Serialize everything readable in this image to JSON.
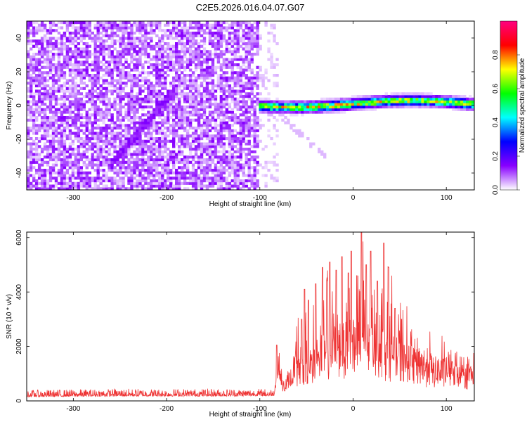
{
  "title": "C2E5.2026.016.04.07.G07",
  "chart_data": [
    {
      "type": "heatmap",
      "xlabel": "Height of straight line (km)",
      "ylabel": "Frequency (Hz)",
      "xlim": [
        -350,
        130
      ],
      "ylim": [
        -50,
        50
      ],
      "xticks": [
        -300,
        -200,
        -100,
        0,
        100
      ],
      "yticks": [
        -40,
        -20,
        0,
        20,
        40
      ],
      "colorbar": {
        "label": "Normalized spectral amplitude",
        "range": [
          0,
          1
        ],
        "ticks": [
          "0.0",
          "0.2",
          "0.4",
          "0.6",
          "0.8"
        ],
        "colors": [
          "#ffffff",
          "#8800ff",
          "#0000ff",
          "#00ffff",
          "#00ff00",
          "#ffff00",
          "#ff0000",
          "#ff0080"
        ]
      },
      "features": [
        {
          "name": "noise",
          "x": [
            -350,
            -100
          ],
          "y": [
            -50,
            50
          ],
          "level": 0.1
        },
        {
          "name": "sparse-noise",
          "x": [
            -100,
            -80
          ],
          "y": [
            -50,
            50
          ],
          "level": 0.03
        },
        {
          "name": "diagonal-streak",
          "x": [
            -260,
            -190
          ],
          "y": [
            -35,
            10
          ],
          "level": 0.12
        },
        {
          "name": "carrier",
          "x": [
            -100,
            130
          ],
          "y": [
            -3,
            5
          ],
          "level": 0.6
        },
        {
          "name": "carrier-tail",
          "x": [
            -80,
            -30
          ],
          "y": [
            -30,
            -5
          ],
          "level": 0.04
        }
      ]
    },
    {
      "type": "line",
      "xlabel": "Height of straight line (km)",
      "ylabel": "SNR (10 * v/v)",
      "xlim": [
        -350,
        130
      ],
      "ylim": [
        0,
        6200
      ],
      "xticks": [
        -300,
        -200,
        -100,
        0,
        100
      ],
      "yticks": [
        0,
        2000,
        4000,
        6000
      ],
      "series": [
        {
          "color": "#ee3333",
          "envelope": {
            "x": [
              -350,
              -250,
              -150,
              -100,
              -85,
              -80,
              -75,
              -65,
              -60,
              -50,
              -40,
              -30,
              -20,
              -10,
              0,
              10,
              20,
              30,
              40,
              50,
              70,
              90,
              110,
              130
            ],
            "base": [
              150,
              170,
              170,
              180,
              180,
              1000,
              300,
              600,
              1100,
              1400,
              1800,
              2000,
              2200,
              2300,
              2400,
              2400,
              2300,
              2100,
              2000,
              1800,
              1500,
              1300,
              1200,
              1150
            ],
            "peak": [
              400,
              450,
              450,
              450,
              450,
              2000,
              800,
              1500,
              3000,
              4100,
              4300,
              4900,
              5100,
              5300,
              5500,
              6200,
              5500,
              5800,
              4900,
              3500,
              2600,
              2300,
              2000,
              1900
            ]
          },
          "spikes": [
            {
              "x": -82,
              "y": 2050
            },
            {
              "x": -55,
              "y": 3000
            },
            {
              "x": -52,
              "y": 4100
            },
            {
              "x": -48,
              "y": 3700
            },
            {
              "x": -40,
              "y": 4300
            },
            {
              "x": -33,
              "y": 4900
            },
            {
              "x": -28,
              "y": 4400
            },
            {
              "x": -25,
              "y": 5100
            },
            {
              "x": -18,
              "y": 4800
            },
            {
              "x": -12,
              "y": 5300
            },
            {
              "x": -5,
              "y": 4700
            },
            {
              "x": -2,
              "y": 5500
            },
            {
              "x": 4,
              "y": 4600
            },
            {
              "x": 9,
              "y": 6200
            },
            {
              "x": 14,
              "y": 5000
            },
            {
              "x": 19,
              "y": 5500
            },
            {
              "x": 26,
              "y": 4400
            },
            {
              "x": 33,
              "y": 5800
            },
            {
              "x": 38,
              "y": 4900
            },
            {
              "x": 45,
              "y": 3400
            },
            {
              "x": 52,
              "y": 3000
            }
          ]
        }
      ]
    }
  ]
}
